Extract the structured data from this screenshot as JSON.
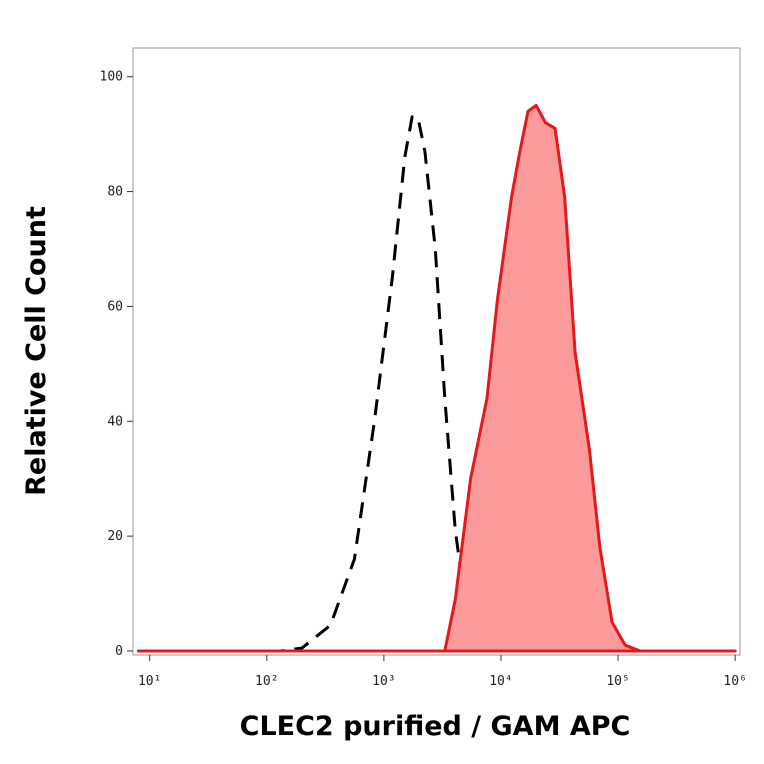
{
  "chart_data": {
    "type": "line",
    "xlabel": "CLEC2 purified / GAM APC",
    "ylabel": "Relative Cell Count",
    "xscale": "log",
    "xlim": [
      7.2,
      1100000
    ],
    "ylim": [
      -0.7,
      105
    ],
    "xticks": [
      {
        "value": 10,
        "label": "10¹"
      },
      {
        "value": 100,
        "label": "10²"
      },
      {
        "value": 1000,
        "label": "10³"
      },
      {
        "value": 10000,
        "label": "10⁴"
      },
      {
        "value": 100000,
        "label": "10⁵"
      },
      {
        "value": 1000000,
        "label": "10⁶"
      }
    ],
    "yticks": [
      0,
      20,
      40,
      60,
      80,
      100
    ],
    "series": [
      {
        "color": "#000000",
        "style": "dashed",
        "fill": false,
        "x": [
          8,
          130,
          200,
          350,
          560,
          830,
          1180,
          1510,
          1740,
          1950,
          2240,
          2750,
          3310,
          4070,
          4900,
          6000,
          8000,
          1000000
        ],
        "values": [
          0,
          0,
          0.5,
          4.5,
          16,
          40,
          65,
          86,
          93,
          93,
          87,
          70,
          44,
          21,
          9,
          2,
          0,
          0
        ]
      },
      {
        "color": "#e31a1c",
        "style": "solid",
        "fill": true,
        "fill_color": "#fb9a9a",
        "x": [
          8,
          3310,
          4070,
          5500,
          7600,
          9300,
          10700,
          12300,
          14500,
          17000,
          20000,
          24000,
          29000,
          35000,
          43000,
          57000,
          70000,
          89000,
          115000,
          155000,
          1000000
        ],
        "values": [
          0,
          0,
          9,
          30,
          44,
          61,
          70,
          79,
          87,
          94,
          95,
          92,
          91,
          79,
          52,
          35,
          18,
          5,
          1,
          0,
          0
        ]
      }
    ]
  }
}
